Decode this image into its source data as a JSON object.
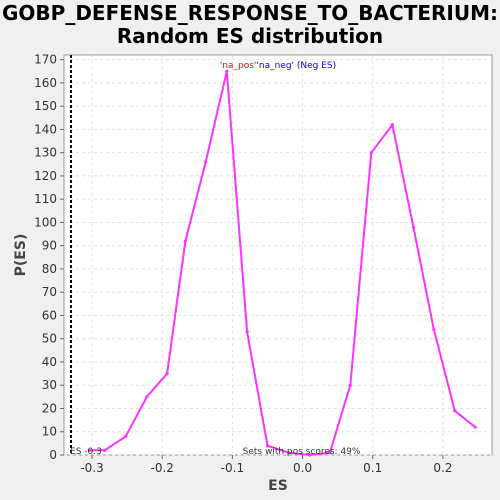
{
  "title_line1": "GOBP_DEFENSE_RESPONSE_TO_BACTERIUM:",
  "title_line2": "Random ES distribution",
  "chart_data": {
    "type": "line",
    "xlabel": "ES",
    "ylabel": "P(ES)",
    "xlim": [
      -0.34,
      0.27
    ],
    "ylim": [
      0,
      172
    ],
    "x_ticks": [
      -0.3,
      -0.2,
      -0.1,
      0.0,
      0.1,
      0.2
    ],
    "x_tick_labels": [
      "-0.3",
      "-0.2",
      "-0.1",
      "0.0",
      "0.1",
      "0.2"
    ],
    "y_ticks": [
      0,
      10,
      20,
      30,
      40,
      50,
      60,
      70,
      80,
      90,
      100,
      110,
      120,
      130,
      140,
      150,
      160,
      170
    ],
    "grid": true,
    "series": [
      {
        "color": "#ff33ff",
        "x": [
          -0.304,
          -0.282,
          -0.252,
          -0.222,
          -0.193,
          -0.167,
          -0.138,
          -0.108,
          -0.079,
          -0.05,
          -0.02,
          0.01,
          0.039,
          0.068,
          0.098,
          0.128,
          0.158,
          0.187,
          0.217,
          0.246
        ],
        "y": [
          2,
          2,
          8,
          25,
          35,
          92,
          126,
          165,
          53,
          4,
          1,
          0,
          1,
          30,
          130,
          142,
          98,
          54,
          19,
          12
        ]
      }
    ],
    "es_marker": {
      "x": -0.33,
      "label": "ES -0.3"
    },
    "legend_pos_label": "'na_pos'",
    "legend_neg_label": "'na_neg' (Neg ES)",
    "legend_pos_color": "#ff0000",
    "legend_neg_color": "#0000ff",
    "annotation": "Sets with pos scores: 49%"
  }
}
